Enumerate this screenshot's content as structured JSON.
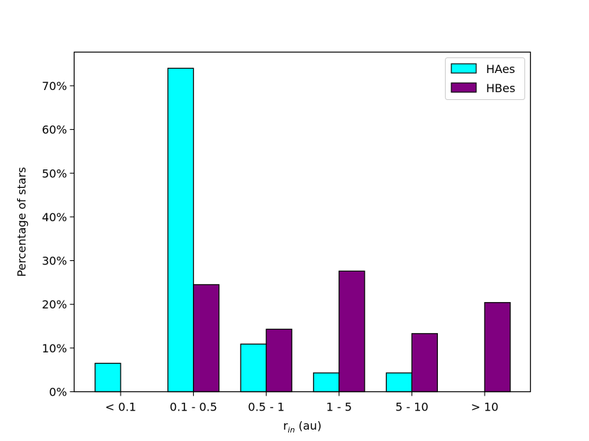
{
  "chart_data": {
    "type": "bar",
    "categories": [
      "< 0.1",
      "0.1 - 0.5",
      "0.5 - 1",
      "1 - 5",
      "5 - 10",
      "> 10"
    ],
    "series": [
      {
        "name": "HAes",
        "values": [
          6.5,
          74.0,
          10.9,
          4.3,
          4.3,
          0.0
        ],
        "color": "#00ffff"
      },
      {
        "name": "HBes",
        "values": [
          0.0,
          24.5,
          14.3,
          27.6,
          13.3,
          20.4
        ],
        "color": "#800080"
      }
    ],
    "xlabel": {
      "main": "r",
      "sub": "in",
      "tail": " (au)"
    },
    "ylabel": "Percentage of stars",
    "ylim": [
      0,
      77.7
    ],
    "yticks": [
      0,
      10,
      20,
      30,
      40,
      50,
      60,
      70
    ],
    "ytick_labels": [
      "0%",
      "10%",
      "20%",
      "30%",
      "40%",
      "50%",
      "60%",
      "70%"
    ],
    "grid": false,
    "legend_position": "top-right",
    "colors": {
      "edge": "#000000"
    }
  }
}
